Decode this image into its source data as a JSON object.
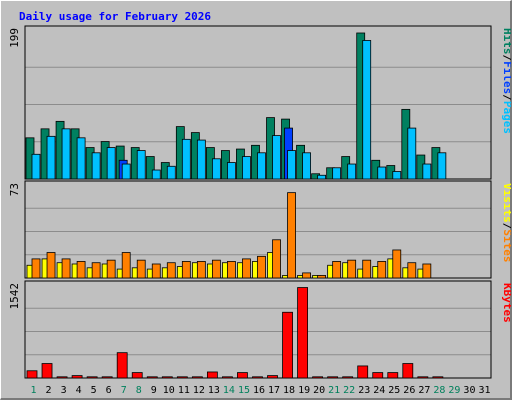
{
  "chart_data": {
    "type": "bar",
    "title": "Daily usage for February 2026",
    "days": [
      "1",
      "2",
      "3",
      "4",
      "5",
      "6",
      "7",
      "8",
      "9",
      "10",
      "11",
      "12",
      "13",
      "14",
      "15",
      "16",
      "17",
      "18",
      "19",
      "20",
      "21",
      "22",
      "23",
      "24",
      "25",
      "26",
      "27",
      "28",
      "29",
      "30",
      "31"
    ],
    "weekend_days": [
      "1",
      "7",
      "8",
      "14",
      "15",
      "21",
      "22",
      "28",
      "29"
    ],
    "panels": [
      {
        "name": "hits-panel",
        "max_label": "199",
        "ymax": 199,
        "legend": [
          {
            "text": "Pages",
            "color": "#00c0ff"
          },
          {
            "text": "Files",
            "color": "#0040ff"
          },
          {
            "text": "Hits",
            "color": "#008060"
          }
        ],
        "series": [
          {
            "name": "Hits",
            "color": "#008060",
            "values": [
              55,
              67,
              77,
              67,
              42,
              50,
              44,
              42,
              30,
              22,
              70,
              62,
              42,
              38,
              40,
              45,
              82,
              80,
              45,
              7,
              15,
              30,
              195,
              25,
              18,
              93,
              32,
              42,
              0,
              0,
              0
            ]
          },
          {
            "name": "Files",
            "color": "#0040ff",
            "values": [
              0,
              0,
              0,
              0,
              0,
              0,
              25,
              0,
              0,
              0,
              0,
              0,
              0,
              0,
              0,
              0,
              0,
              68,
              0,
              0,
              0,
              0,
              0,
              0,
              0,
              0,
              0,
              0,
              0,
              0,
              0
            ]
          },
          {
            "name": "Pages",
            "color": "#00c0ff",
            "values": [
              33,
              57,
              67,
              55,
              35,
              42,
              20,
              38,
              12,
              17,
              53,
              52,
              27,
              22,
              30,
              35,
              58,
              38,
              35,
              5,
              15,
              20,
              185,
              16,
              10,
              68,
              20,
              35,
              0,
              0,
              0
            ]
          }
        ]
      },
      {
        "name": "visits-panel",
        "max_label": "73",
        "ymax": 73,
        "legend": [
          {
            "text": "Sites",
            "color": "#ff8000"
          },
          {
            "text": "Visits",
            "color": "#ffff00"
          }
        ],
        "series": [
          {
            "name": "Visits",
            "color": "#ffff00",
            "values": [
              10,
              15,
              12,
              11,
              8,
              11,
              7,
              8,
              7,
              8,
              9,
              12,
              11,
              12,
              12,
              13,
              20,
              2,
              2,
              2,
              10,
              12,
              7,
              9,
              15,
              8,
              7,
              0,
              0,
              0,
              0
            ]
          },
          {
            "name": "Sites",
            "color": "#ff8000",
            "values": [
              15,
              20,
              15,
              13,
              12,
              14,
              20,
              14,
              11,
              12,
              13,
              13,
              14,
              13,
              15,
              17,
              30,
              67,
              4,
              2,
              13,
              14,
              14,
              13,
              22,
              12,
              11,
              0,
              0,
              0,
              0
            ]
          }
        ]
      },
      {
        "name": "kbytes-panel",
        "max_label": "1542",
        "ymax": 1542,
        "legend": [
          {
            "text": "KBytes",
            "color": "#ff0000"
          }
        ],
        "series": [
          {
            "name": "KBytes",
            "color": "#ff0000",
            "values": [
              120,
              240,
              20,
              40,
              20,
              20,
              420,
              90,
              20,
              20,
              20,
              20,
              100,
              20,
              90,
              20,
              40,
              1090,
              1500,
              20,
              20,
              20,
              200,
              90,
              90,
              240,
              20,
              20,
              0,
              0,
              0
            ]
          }
        ]
      }
    ],
    "colors": {
      "title": "#0000ff",
      "weekend_label": "#00805c",
      "weekday_label": "#000000",
      "plot_background": "#c0c0c0",
      "gridline": "#8c8c8c"
    }
  }
}
